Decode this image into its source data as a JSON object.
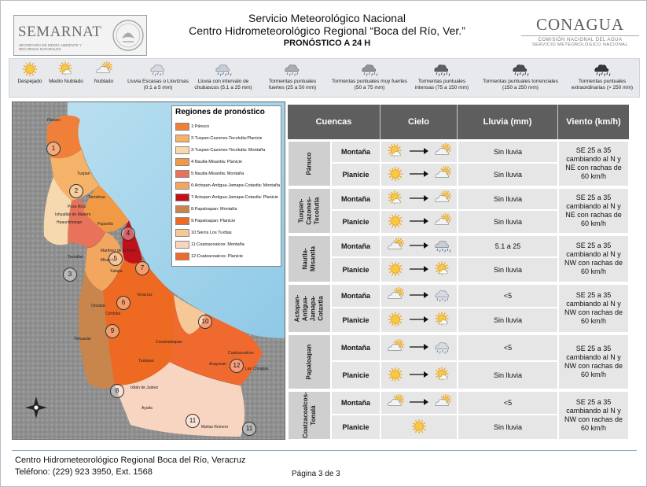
{
  "header": {
    "semarnat_logo_text": "SEMARNAT",
    "semarnat_subtext": "SECRETARÍA DE MEDIO AMBIENTE Y RECURSOS NATURALES",
    "title_line1": "Servicio Meteorológico Nacional",
    "title_line2": "Centro Hidrometeorológico Regional “Boca del Río, Ver.”",
    "title_line3": "PRONÓSTICO A 24 H",
    "conagua_logo_text": "CONAGUA",
    "conagua_sub1": "COMISIÓN NACIONAL DEL AGUA",
    "conagua_sub2": "SERVICIO METEOROLÓGICO NACIONAL"
  },
  "weather_legend": [
    {
      "label": "Despejado",
      "icon": "sun-icon"
    },
    {
      "label": "Medio Nublado",
      "icon": "partly-cloudy-icon"
    },
    {
      "label": "Nublado",
      "icon": "cloudy-icon"
    },
    {
      "label": "Lluvia Escasas o Lloviznas (0.1 a 5 mm)",
      "icon": "drizzle-icon"
    },
    {
      "label": "Lluvia con intervalo de chubascos (5.1 a 25 mm)",
      "icon": "showers-icon"
    },
    {
      "label": "Tormentas puntuales fuertes (25 a 50 mm)",
      "icon": "storm-strong-icon"
    },
    {
      "label": "Tormentas puntuales muy fuertes (50 a 75 mm)",
      "icon": "storm-very-strong-icon"
    },
    {
      "label": "Tormentas puntuales intensas (75 a 150 mm)",
      "icon": "storm-intense-icon"
    },
    {
      "label": "Tormentas puntuales torrenciales (150 a 250 mm)",
      "icon": "storm-torrential-icon"
    },
    {
      "label": "Tormentas puntuales extraordinarias (> 250 mm)",
      "icon": "storm-extraordinary-icon"
    }
  ],
  "map": {
    "legend_title": "Regiones de pronóstico",
    "regions": [
      {
        "label": "1:Pánuco",
        "color": "#f07f3a"
      },
      {
        "label": "2:Tuxpan-Cazones-Tecolutla:Planicie",
        "color": "#f5b36a"
      },
      {
        "label": "3:Tuxpan-Cazones-Tecolutla: Montaña",
        "color": "#f7d9b0"
      },
      {
        "label": "4:Nautla-Misantla: Planicie",
        "color": "#f09a45"
      },
      {
        "label": "5:Nautla-Misantla: Montaña",
        "color": "#e8735a"
      },
      {
        "label": "6:Actopan-Antigua-Jamapa-Cotaxtla: Montaña",
        "color": "#f3a660"
      },
      {
        "label": "7:Actopan-Antigua-Jamapa-Cotaxtla: Planicie",
        "color": "#c0111a"
      },
      {
        "label": "8:Papaloapan: Montaña",
        "color": "#c8864d"
      },
      {
        "label": "9:Papaloapan: Planicie",
        "color": "#ee6a22"
      },
      {
        "label": "10:Sierra Los Tuxtlas",
        "color": "#f6c898"
      },
      {
        "label": "11:Coatzacoalcos: Montaña",
        "color": "#f8d5c0"
      },
      {
        "label": "12:Coatzacoalcos: Planicie",
        "color": "#f06a30"
      }
    ],
    "place_labels": [
      "Pánuco",
      "Tuxpan",
      "Tamiahua",
      "Poza Rica",
      "Ixhuatlán de Madero",
      "Huauchinango",
      "Papantla",
      "Martínez de la Torre",
      "Misantla",
      "Teziutlán",
      "Xalapa",
      "Veracruz",
      "Orizaba",
      "Córdoba",
      "Tehuacán",
      "Cosamaloapan",
      "Tuxtepec",
      "Acayucan",
      "Coatzacoalcos",
      "Las Choapas",
      "Ixtlán de Juárez",
      "Ayutla",
      "Matías Romero"
    ],
    "region_markers": [
      "1",
      "2",
      "3",
      "4",
      "5",
      "6",
      "7",
      "8",
      "9",
      "10",
      "11",
      "12",
      "11"
    ]
  },
  "table": {
    "headers": {
      "basins": "Cuencas",
      "sky": "Cielo",
      "rain": "Lluvia (mm)",
      "wind": "Viento (km/h)"
    },
    "basins": [
      {
        "name": "Pánuco",
        "wind": "SE 25 a 35 cambiando al N y NE con rachas de 60 km/h",
        "rows": [
          {
            "zone": "Montaña",
            "sky_from": "partly-cloudy-icon",
            "sky_to": "cloudy-icon",
            "rain": "Sin lluvia"
          },
          {
            "zone": "Planicie",
            "sky_from": "sun-icon",
            "sky_to": "cloudy-icon",
            "rain": "Sin lluvia"
          }
        ]
      },
      {
        "name": "Tuxpan-Cazones-Tecolutla",
        "wind": "SE 25 a 35 cambiando al N y NE con rachas de 60 km/h",
        "rows": [
          {
            "zone": "Montaña",
            "sky_from": "partly-cloudy-icon",
            "sky_to": "cloudy-icon",
            "rain": "Sin lluvia"
          },
          {
            "zone": "Planicie",
            "sky_from": "sun-icon",
            "sky_to": "cloudy-icon",
            "rain": "Sin lluvia"
          }
        ]
      },
      {
        "name": "Nautla-Misantla",
        "wind": "SE 25 a 35 cambiando al N y NW con rachas de 60 km/h",
        "rows": [
          {
            "zone": "Montaña",
            "sky_from": "cloudy-icon",
            "sky_to": "showers-icon",
            "rain": "5.1 a 25"
          },
          {
            "zone": "Planicie",
            "sky_from": "sun-icon",
            "sky_to": "partly-cloudy-icon",
            "rain": "Sin lluvia"
          }
        ]
      },
      {
        "name": "Actopan-Antigua-Jamapa-Cotaxtla",
        "wind": "SE 25 a 35 cambiando al N y NW con rachas de 60 km/h",
        "rows": [
          {
            "zone": "Montaña",
            "sky_from": "cloudy-icon",
            "sky_to": "drizzle-icon",
            "rain": "<5"
          },
          {
            "zone": "Planicie",
            "sky_from": "sun-icon",
            "sky_to": "partly-cloudy-icon",
            "rain": "Sin lluvia"
          }
        ]
      },
      {
        "name": "Papaloapan",
        "wind": "SE 25 a 35 cambiando al N y NW con rachas de 60 km/h",
        "rows": [
          {
            "zone": "Montaña",
            "sky_from": "cloudy-icon",
            "sky_to": "drizzle-icon",
            "rain": "<5"
          },
          {
            "zone": "Planicie",
            "sky_from": "sun-icon",
            "sky_to": "partly-cloudy-icon",
            "rain": "Sin lluvia"
          }
        ]
      },
      {
        "name": "Coatzacoalcos-Tonalá",
        "wind": "SE 25 a 35 cambiando al N y NW con rachas de 60 km/h",
        "rows": [
          {
            "zone": "Montaña",
            "sky_from": "cloudy-icon",
            "sky_to": "cloudy-icon",
            "rain": "<5"
          },
          {
            "zone": "Planicie",
            "sky_single": "sun-icon",
            "rain": "Sin lluvia"
          }
        ]
      }
    ]
  },
  "footer": {
    "line1": "Centro Hidrometeorológico Regional Boca del Río, Veracruz",
    "line2": "Teléfono: (229) 923 3950, Ext. 1568",
    "page": "Página 3 de 3"
  }
}
